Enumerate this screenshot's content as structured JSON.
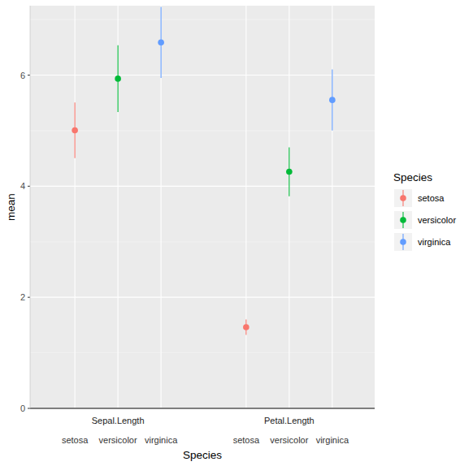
{
  "chart_data": {
    "type": "pointrange",
    "x_label": "Species",
    "y_label": "mean",
    "legend_title": "Species",
    "categories": [
      "Sepal.Length",
      "Petal.Length"
    ],
    "series": [
      {
        "name": "setosa",
        "color": "#F8766D",
        "values": [
          5.006,
          1.462
        ],
        "errors": [
          0.5,
          0.14
        ]
      },
      {
        "name": "versicolor",
        "color": "#00BA38",
        "values": [
          5.936,
          4.26
        ],
        "errors": [
          0.6,
          0.44
        ]
      },
      {
        "name": "virginica",
        "color": "#619CFF",
        "values": [
          6.588,
          5.552
        ],
        "errors": [
          0.64,
          0.55
        ]
      }
    ],
    "ylim": [
      0,
      7.25
    ],
    "yticks": [
      0,
      2,
      4,
      6
    ],
    "grid": true,
    "legend": "right",
    "marker": "circle"
  }
}
